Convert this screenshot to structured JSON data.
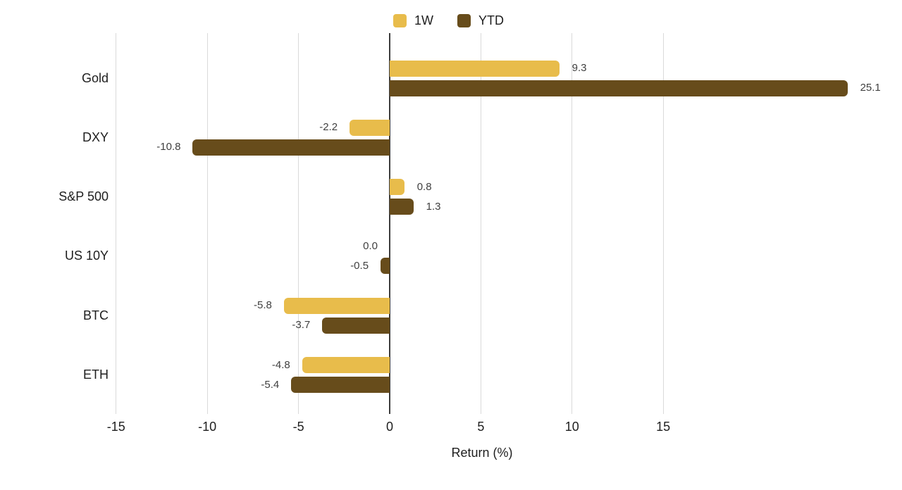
{
  "chart_data": {
    "type": "bar",
    "orientation": "horizontal",
    "title": "",
    "xlabel": "Return (%)",
    "ylabel": "",
    "categories": [
      "Gold",
      "DXY",
      "S&P 500",
      "US 10Y",
      "BTC",
      "ETH"
    ],
    "series": [
      {
        "name": "1W",
        "color": "#e8bc4b",
        "values": [
          9.3,
          -2.2,
          0.8,
          0.0,
          -5.8,
          -4.8
        ],
        "value_labels": [
          "9.3",
          "-2.2",
          "0.8",
          "0.0",
          "-5.8",
          "-4.8"
        ]
      },
      {
        "name": "YTD",
        "color": "#674c1b",
        "values": [
          25.1,
          -10.8,
          1.3,
          -0.5,
          -3.7,
          -5.4
        ],
        "value_labels": [
          "25.1",
          "-10.8",
          "1.3",
          "-0.5",
          "-3.7",
          "-5.4"
        ]
      }
    ],
    "x_ticks": [
      -15,
      -10,
      -5,
      0,
      5,
      10,
      15
    ],
    "x_tick_labels": [
      "-15",
      "-10",
      "-5",
      "0",
      "5",
      "10",
      "15"
    ],
    "xlim": [
      -15,
      25.1
    ],
    "grid": true,
    "legend_position": "top",
    "value_labels_shown": true
  },
  "colors": {
    "series_1w": "#e8bc4b",
    "series_ytd": "#674c1b",
    "gridline": "#dadada",
    "zero_axis": "#3d3d3d",
    "axis_text": "#1e1e1e",
    "value_text": "#404040",
    "background": "#ffffff"
  }
}
